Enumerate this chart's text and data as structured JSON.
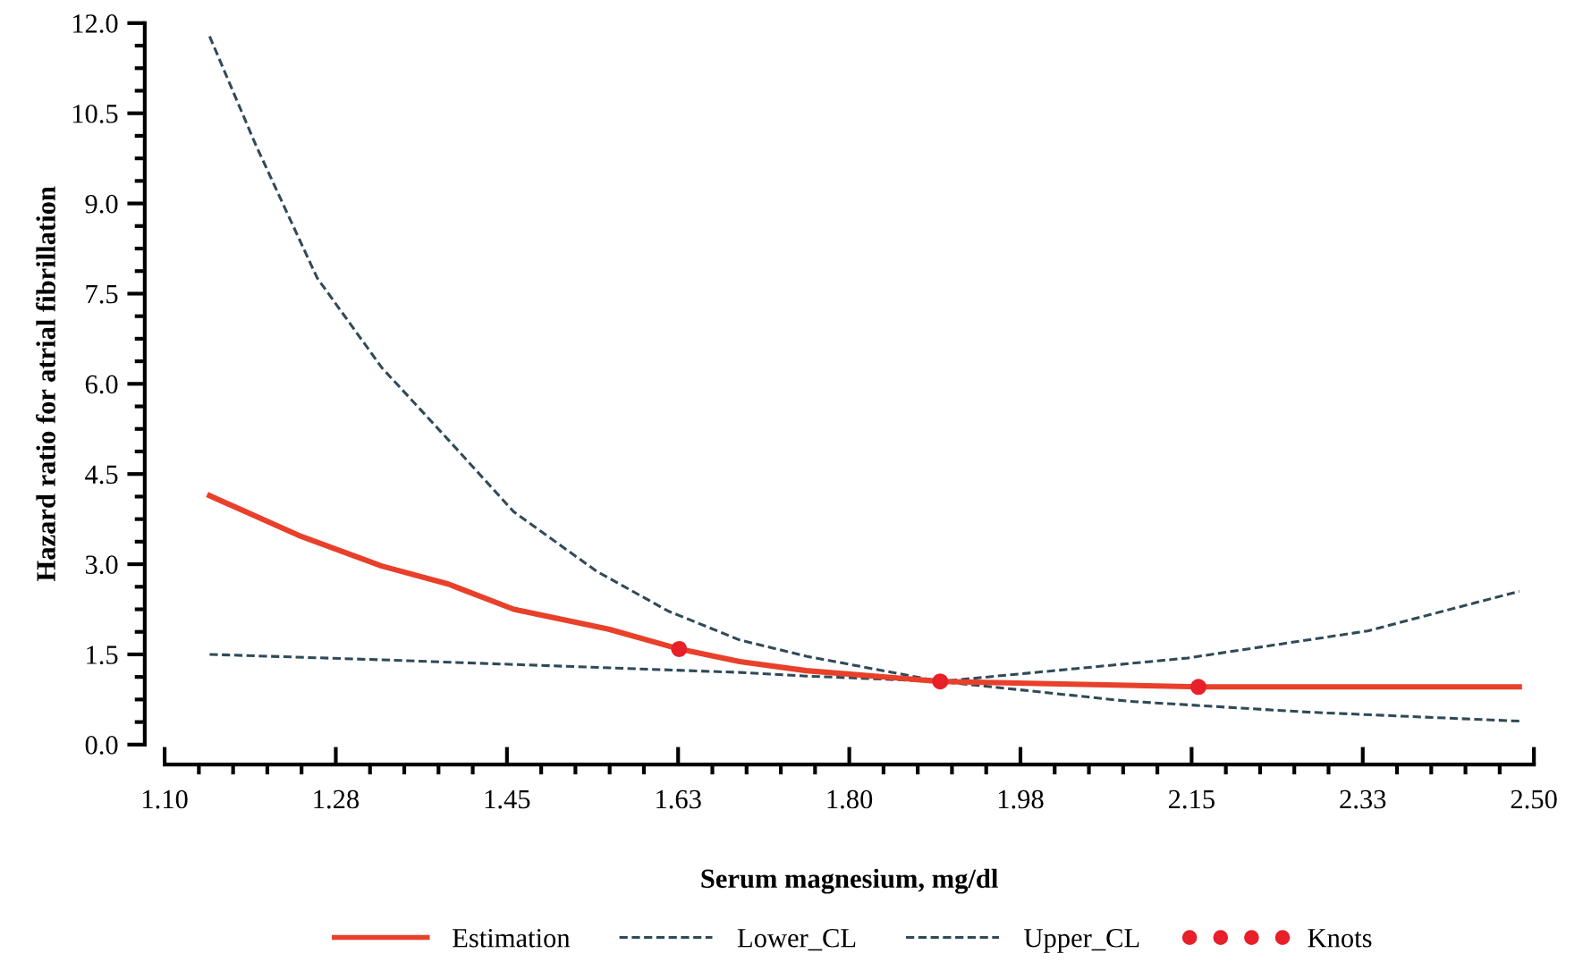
{
  "chart_data": {
    "type": "line",
    "xlabel": "Serum magnesium, mg/dl",
    "ylabel": "Hazard ratio for atrial fibrillation",
    "xlim": [
      1.1,
      2.5
    ],
    "ylim": [
      0,
      12
    ],
    "xticks": [
      {
        "value": 1.1,
        "label": "1.10"
      },
      {
        "value": 1.275,
        "label": "1.28"
      },
      {
        "value": 1.45,
        "label": "1.45"
      },
      {
        "value": 1.625,
        "label": "1.63"
      },
      {
        "value": 1.8,
        "label": "1.80"
      },
      {
        "value": 1.975,
        "label": "1.98"
      },
      {
        "value": 2.15,
        "label": "2.15"
      },
      {
        "value": 2.325,
        "label": "2.33"
      },
      {
        "value": 2.5,
        "label": "2.50"
      }
    ],
    "yticks": [
      {
        "value": 0,
        "label": "0.0"
      },
      {
        "value": 1.5,
        "label": "1.5"
      },
      {
        "value": 3,
        "label": "3.0"
      },
      {
        "value": 4.5,
        "label": "4.5"
      },
      {
        "value": 6,
        "label": "6.0"
      },
      {
        "value": 7.5,
        "label": "7.5"
      },
      {
        "value": 9,
        "label": "9.0"
      },
      {
        "value": 10.5,
        "label": "10.5"
      },
      {
        "value": 12,
        "label": "12.0"
      }
    ],
    "legend": "bottom",
    "grid": false,
    "series": [
      {
        "name": "Estimation",
        "color": "#e8402a",
        "line_style": "solid",
        "marker": "none",
        "x": [
          1.146,
          1.237,
          1.322,
          1.39,
          1.457,
          1.554,
          1.626,
          1.688,
          1.756,
          1.893,
          2.159,
          2.485
        ],
        "values": [
          4.14,
          3.48,
          2.97,
          2.67,
          2.25,
          1.92,
          1.59,
          1.38,
          1.23,
          1.05,
          0.96,
          0.96
        ]
      },
      {
        "name": "Lower_CL",
        "color": "#2f4a58",
        "line_style": "dashed",
        "marker": "none",
        "x": [
          1.146,
          1.322,
          1.688,
          1.756,
          1.893,
          2.086,
          2.269,
          2.485
        ],
        "values": [
          1.5,
          1.41,
          1.2,
          1.14,
          1.05,
          0.72,
          0.54,
          0.39
        ]
      },
      {
        "name": "Upper_CL",
        "color": "#2f4a58",
        "line_style": "dashed",
        "marker": "none",
        "x": [
          1.146,
          1.193,
          1.256,
          1.322,
          1.39,
          1.457,
          1.542,
          1.615,
          1.688,
          1.756,
          1.893,
          2.146,
          2.33,
          2.485
        ],
        "values": [
          11.78,
          9.98,
          7.76,
          6.27,
          5.07,
          3.87,
          2.88,
          2.22,
          1.74,
          1.47,
          1.05,
          1.44,
          1.89,
          2.55
        ]
      },
      {
        "name": "Knots",
        "type": "scatter",
        "color": "#e8202a",
        "marker": "circle",
        "x": [
          1.626,
          1.893,
          2.157
        ],
        "values": [
          1.59,
          1.05,
          0.96
        ]
      }
    ]
  }
}
